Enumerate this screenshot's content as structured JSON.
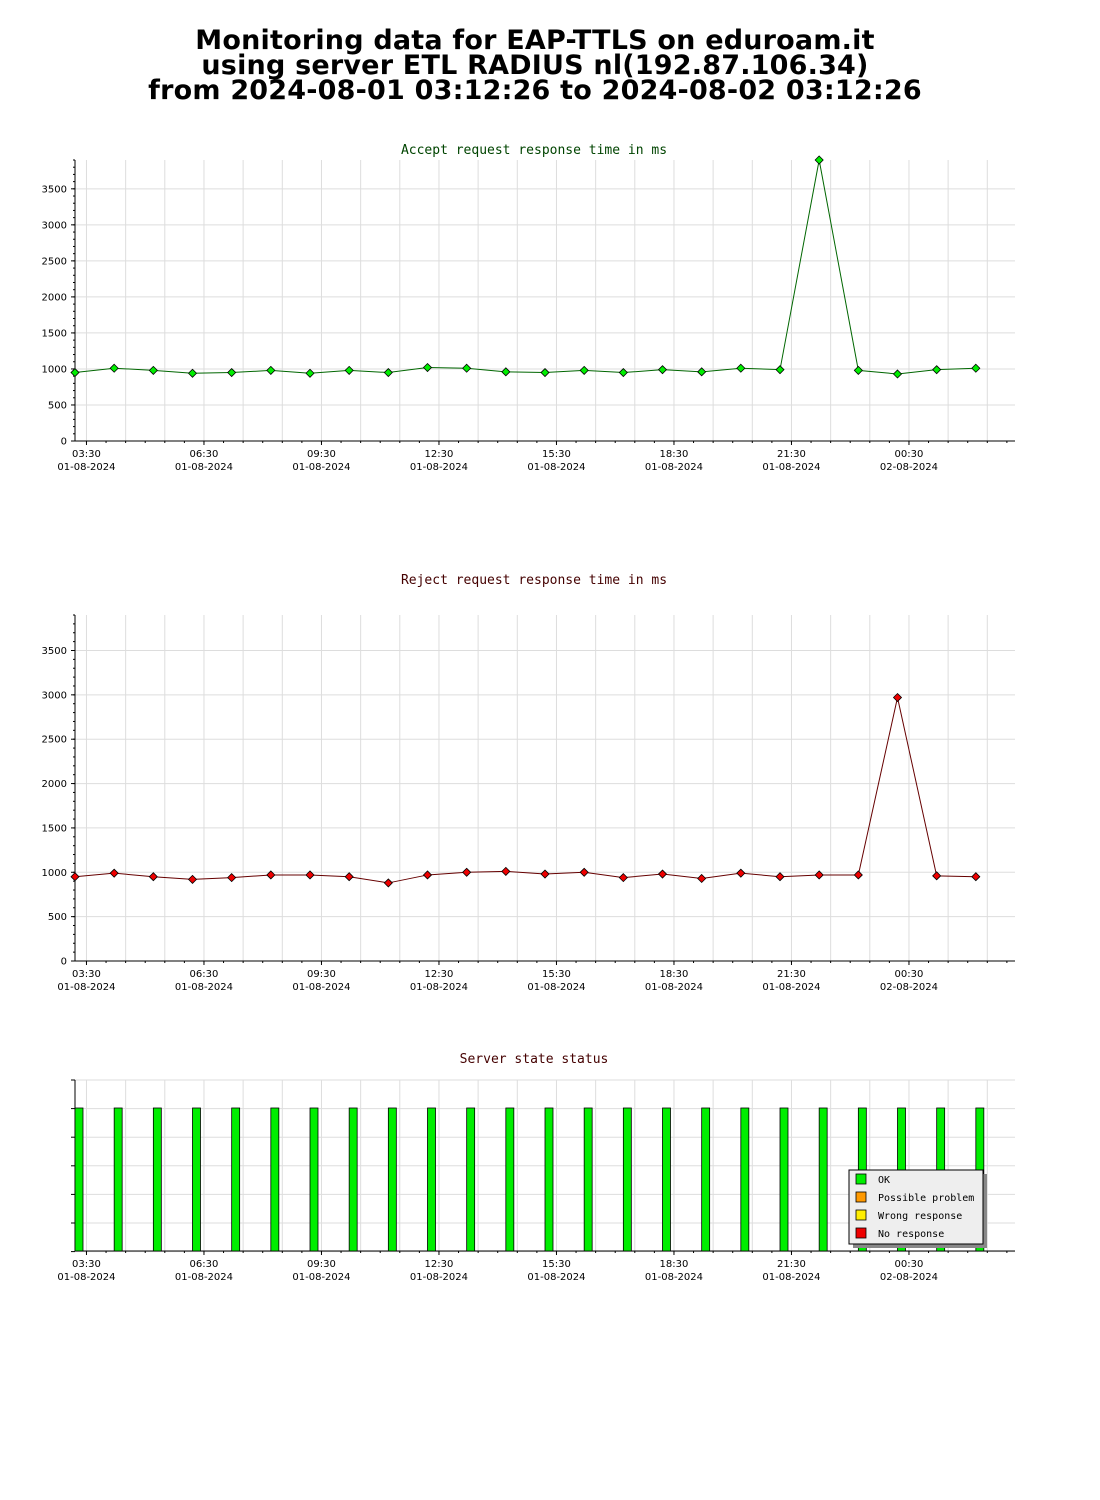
{
  "header": {
    "line1": "Monitoring data for EAP-TTLS on eduroam.it",
    "line2": "using server ETL RADIUS nl(192.87.106.34)",
    "line3": "from 2024-08-01 03:12:26 to 2024-08-02 03:12:26"
  },
  "colors": {
    "accept_title": "#004400",
    "reject_title": "#440000",
    "status_title": "#440000",
    "accept_marker": "#00ee00",
    "accept_line": "#006600",
    "reject_marker": "#ee0000",
    "reject_line": "#660000",
    "ok": "#00ee00",
    "possible_problem": "#ff9900",
    "wrong_response": "#ffee00",
    "no_response": "#ee0000",
    "grid": "#dddddd"
  },
  "x_ticks": [
    {
      "time": "03:30",
      "date": "01-08-2024"
    },
    {
      "time": "06:30",
      "date": "01-08-2024"
    },
    {
      "time": "09:30",
      "date": "01-08-2024"
    },
    {
      "time": "12:30",
      "date": "01-08-2024"
    },
    {
      "time": "15:30",
      "date": "01-08-2024"
    },
    {
      "time": "18:30",
      "date": "01-08-2024"
    },
    {
      "time": "21:30",
      "date": "01-08-2024"
    },
    {
      "time": "00:30",
      "date": "02-08-2024"
    }
  ],
  "chart_data": [
    {
      "type": "line",
      "title": "Accept request response time in ms",
      "xlabel": "",
      "ylabel": "",
      "ylim": [
        0,
        3900
      ],
      "yticks": [
        0,
        500,
        1000,
        1500,
        2000,
        2500,
        3000,
        3500
      ],
      "grid": true,
      "x": [
        "2024-08-01 03:12",
        "2024-08-01 04:12",
        "2024-08-01 05:12",
        "2024-08-01 06:12",
        "2024-08-01 07:12",
        "2024-08-01 08:12",
        "2024-08-01 09:12",
        "2024-08-01 10:12",
        "2024-08-01 11:12",
        "2024-08-01 12:12",
        "2024-08-01 13:12",
        "2024-08-01 14:12",
        "2024-08-01 15:12",
        "2024-08-01 16:12",
        "2024-08-01 17:12",
        "2024-08-01 18:12",
        "2024-08-01 19:12",
        "2024-08-01 20:12",
        "2024-08-01 21:12",
        "2024-08-01 22:12",
        "2024-08-01 23:12",
        "2024-08-02 00:12",
        "2024-08-02 01:12",
        "2024-08-02 02:12"
      ],
      "values": [
        950,
        1010,
        980,
        940,
        950,
        980,
        940,
        980,
        950,
        1020,
        1010,
        960,
        950,
        980,
        950,
        990,
        960,
        1010,
        990,
        3900,
        980,
        930,
        990,
        1010
      ]
    },
    {
      "type": "line",
      "title": "Reject request response time in ms",
      "xlabel": "",
      "ylabel": "",
      "ylim": [
        0,
        3900
      ],
      "yticks": [
        0,
        500,
        1000,
        1500,
        2000,
        2500,
        3000,
        3500
      ],
      "grid": true,
      "x": [
        "2024-08-01 03:12",
        "2024-08-01 04:12",
        "2024-08-01 05:12",
        "2024-08-01 06:12",
        "2024-08-01 07:12",
        "2024-08-01 08:12",
        "2024-08-01 09:12",
        "2024-08-01 10:12",
        "2024-08-01 11:12",
        "2024-08-01 12:12",
        "2024-08-01 13:12",
        "2024-08-01 14:12",
        "2024-08-01 15:12",
        "2024-08-01 16:12",
        "2024-08-01 17:12",
        "2024-08-01 18:12",
        "2024-08-01 19:12",
        "2024-08-01 20:12",
        "2024-08-01 21:12",
        "2024-08-01 22:12",
        "2024-08-01 23:12",
        "2024-08-02 00:12",
        "2024-08-02 01:12",
        "2024-08-02 02:12"
      ],
      "values": [
        950,
        990,
        950,
        920,
        940,
        970,
        970,
        950,
        880,
        970,
        1000,
        1010,
        980,
        1000,
        940,
        980,
        930,
        990,
        950,
        970,
        970,
        2970,
        960,
        950
      ]
    },
    {
      "type": "bar",
      "title": "Server state status",
      "xlabel": "",
      "ylabel": "",
      "grid": true,
      "legend": [
        "OK",
        "Possible problem",
        "Wrong response",
        "No response"
      ],
      "legend_position": "bottom-right",
      "x": [
        "2024-08-01 03:12",
        "2024-08-01 04:12",
        "2024-08-01 05:12",
        "2024-08-01 06:12",
        "2024-08-01 07:12",
        "2024-08-01 08:12",
        "2024-08-01 09:12",
        "2024-08-01 10:12",
        "2024-08-01 11:12",
        "2024-08-01 12:12",
        "2024-08-01 13:12",
        "2024-08-01 14:12",
        "2024-08-01 15:12",
        "2024-08-01 16:12",
        "2024-08-01 17:12",
        "2024-08-01 18:12",
        "2024-08-01 19:12",
        "2024-08-01 20:12",
        "2024-08-01 21:12",
        "2024-08-01 22:12",
        "2024-08-01 23:12",
        "2024-08-02 00:12",
        "2024-08-02 01:12",
        "2024-08-02 02:12"
      ],
      "states": [
        "OK",
        "OK",
        "OK",
        "OK",
        "OK",
        "OK",
        "OK",
        "OK",
        "OK",
        "OK",
        "OK",
        "OK",
        "OK",
        "OK",
        "OK",
        "OK",
        "OK",
        "OK",
        "OK",
        "OK",
        "OK",
        "OK",
        "OK",
        "OK"
      ]
    }
  ]
}
